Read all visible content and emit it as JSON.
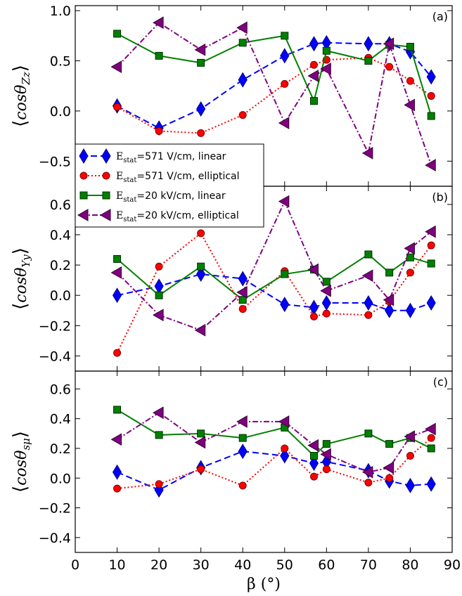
{
  "chart_data": [
    {
      "type": "line",
      "panel_label": "(a)",
      "ylabel": "⟨cosθZz⟩",
      "ylabel_main": "cosθ",
      "ylabel_sub": "Zz",
      "xlim": [
        0,
        90
      ],
      "ylim": [
        -0.75,
        1.05
      ],
      "yticks": [
        -0.5,
        0.0,
        0.5,
        1.0
      ],
      "ytick_labels": [
        "−0.5",
        "0.0",
        "0.5",
        "1.0"
      ],
      "legend": "lower-left",
      "series": [
        {
          "name": "Estat=571 V/cm, linear",
          "x": [
            10,
            20,
            30,
            40,
            50,
            57,
            60,
            70,
            75,
            80,
            85
          ],
          "y": [
            0.05,
            -0.17,
            0.02,
            0.31,
            0.55,
            0.67,
            0.68,
            0.67,
            0.67,
            0.59,
            0.34
          ]
        },
        {
          "name": "Estat=571 V/cm, elliptical",
          "x": [
            10,
            20,
            30,
            40,
            50,
            57,
            60,
            70,
            75,
            80,
            85
          ],
          "y": [
            0.04,
            -0.2,
            -0.22,
            -0.04,
            0.27,
            0.46,
            0.51,
            0.53,
            0.44,
            0.3,
            0.15
          ]
        },
        {
          "name": "Estat=20 kV/cm, linear",
          "x": [
            10,
            20,
            30,
            40,
            50,
            57,
            60,
            70,
            75,
            80,
            85
          ],
          "y": [
            0.77,
            0.55,
            0.48,
            0.68,
            0.75,
            0.1,
            0.6,
            0.5,
            0.66,
            0.64,
            -0.05
          ]
        },
        {
          "name": "Estat=20 kV/cm, elliptical",
          "x": [
            10,
            20,
            30,
            40,
            50,
            57,
            60,
            70,
            75,
            80,
            85
          ],
          "y": [
            0.44,
            0.88,
            0.61,
            0.83,
            -0.12,
            0.35,
            0.42,
            -0.42,
            0.67,
            0.06,
            -0.54
          ]
        }
      ]
    },
    {
      "type": "line",
      "panel_label": "(b)",
      "ylabel": "⟨cosθYy⟩",
      "ylabel_main": "cosθ",
      "ylabel_sub": "Yy",
      "xlim": [
        0,
        90
      ],
      "ylim": [
        -0.5,
        0.72
      ],
      "yticks": [
        -0.4,
        -0.2,
        0.0,
        0.2,
        0.4,
        0.6
      ],
      "ytick_labels": [
        "−0.4",
        "−0.2",
        "0.0",
        "0.2",
        "0.4",
        "0.6"
      ],
      "series": [
        {
          "name": "Estat=571 V/cm, linear",
          "x": [
            10,
            20,
            30,
            40,
            50,
            57,
            60,
            70,
            75,
            80,
            85
          ],
          "y": [
            0.0,
            0.06,
            0.14,
            0.11,
            -0.06,
            -0.08,
            -0.05,
            -0.05,
            -0.1,
            -0.1,
            -0.05
          ]
        },
        {
          "name": "Estat=571 V/cm, elliptical",
          "x": [
            10,
            20,
            30,
            40,
            50,
            57,
            60,
            70,
            75,
            80,
            85
          ],
          "y": [
            -0.38,
            0.19,
            0.41,
            -0.09,
            0.16,
            -0.14,
            -0.12,
            -0.13,
            -0.04,
            0.15,
            0.33
          ]
        },
        {
          "name": "Estat=20 kV/cm, linear",
          "x": [
            10,
            20,
            30,
            40,
            50,
            57,
            60,
            70,
            75,
            80,
            85
          ],
          "y": [
            0.24,
            0.0,
            0.19,
            -0.03,
            0.14,
            0.17,
            0.09,
            0.27,
            0.15,
            0.25,
            0.21
          ]
        },
        {
          "name": "Estat=20 kV/cm, elliptical",
          "x": [
            10,
            20,
            30,
            40,
            50,
            57,
            60,
            70,
            75,
            80,
            85
          ],
          "y": [
            0.15,
            -0.13,
            -0.23,
            0.02,
            0.62,
            0.17,
            0.03,
            0.13,
            -0.03,
            0.31,
            0.42
          ]
        }
      ]
    },
    {
      "type": "line",
      "panel_label": "(c)",
      "ylabel": "⟨cosθsμ⟩",
      "ylabel_main": "cosθ",
      "ylabel_sub": "sμ",
      "xlabel": "β (°)",
      "xlim": [
        0,
        90
      ],
      "ylim": [
        -0.5,
        0.72
      ],
      "xticks": [
        0,
        10,
        20,
        30,
        40,
        50,
        60,
        70,
        80,
        90
      ],
      "yticks": [
        -0.4,
        -0.2,
        0.0,
        0.2,
        0.4,
        0.6
      ],
      "ytick_labels": [
        "−0.4",
        "−0.2",
        "0.0",
        "0.2",
        "0.4",
        "0.6"
      ],
      "series": [
        {
          "name": "Estat=571 V/cm, linear",
          "x": [
            10,
            20,
            30,
            40,
            50,
            57,
            60,
            70,
            75,
            80,
            85
          ],
          "y": [
            0.04,
            -0.08,
            0.07,
            0.18,
            0.15,
            0.1,
            0.11,
            0.05,
            -0.02,
            -0.05,
            -0.04
          ]
        },
        {
          "name": "Estat=571 V/cm, elliptical",
          "x": [
            10,
            20,
            30,
            40,
            50,
            57,
            60,
            70,
            75,
            80,
            85
          ],
          "y": [
            -0.07,
            -0.04,
            0.06,
            -0.05,
            0.2,
            0.01,
            0.06,
            -0.03,
            0.0,
            0.15,
            0.27
          ]
        },
        {
          "name": "Estat=20 kV/cm, linear",
          "x": [
            10,
            20,
            30,
            40,
            50,
            57,
            60,
            70,
            75,
            80,
            85
          ],
          "y": [
            0.46,
            0.29,
            0.3,
            0.27,
            0.34,
            0.15,
            0.23,
            0.3,
            0.23,
            0.27,
            0.2
          ]
        },
        {
          "name": "Estat=20 kV/cm, elliptical",
          "x": [
            10,
            20,
            30,
            40,
            50,
            57,
            60,
            70,
            75,
            80,
            85
          ],
          "y": [
            0.26,
            0.44,
            0.24,
            0.38,
            0.38,
            0.22,
            0.16,
            0.04,
            0.07,
            0.28,
            0.33
          ]
        }
      ]
    }
  ],
  "legend": {
    "entries": [
      {
        "prefix": "E",
        "sub": "stat",
        "rest": "=571 V/cm, linear"
      },
      {
        "prefix": "E",
        "sub": "stat",
        "rest": "=571 V/cm, elliptical"
      },
      {
        "prefix": "E",
        "sub": "stat",
        "rest": "=20 kV/cm, linear"
      },
      {
        "prefix": "E",
        "sub": "stat",
        "rest": "=20 kV/cm, elliptical"
      }
    ]
  },
  "style": {
    "series_colors": [
      "#0000ff",
      "#ff0000",
      "#008000",
      "#800080"
    ],
    "series_markers": [
      "diamond",
      "circle",
      "square",
      "triangle-left"
    ],
    "series_dash": [
      "dashed",
      "dotted",
      "solid",
      "dash-dot"
    ]
  }
}
